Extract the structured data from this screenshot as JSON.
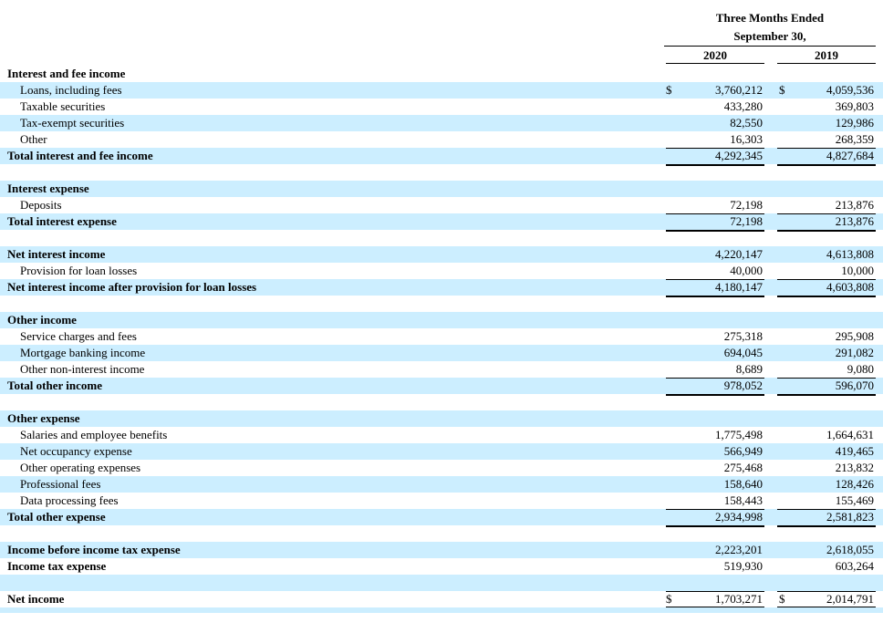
{
  "header": {
    "line1": "Three Months Ended",
    "line2": "September 30,",
    "year1": "2020",
    "year2": "2019"
  },
  "rows": [
    {
      "label": "Interest and fee income",
      "bold": true,
      "shade": false
    },
    {
      "label": "Loans, including fees",
      "indent": true,
      "shade": true,
      "dollar": true,
      "v1": "3,760,212",
      "v2": "4,059,536"
    },
    {
      "label": "Taxable securities",
      "indent": true,
      "shade": false,
      "v1": "433,280",
      "v2": "369,803"
    },
    {
      "label": "Tax-exempt securities",
      "indent": true,
      "shade": true,
      "v1": "82,550",
      "v2": "129,986"
    },
    {
      "label": "Other",
      "indent": true,
      "shade": false,
      "v1": "16,303",
      "v2": "268,359"
    },
    {
      "label": "Total interest and fee income",
      "bold": true,
      "shade": true,
      "v1": "4,292,345",
      "v2": "4,827,684",
      "rule_above": true,
      "total": true
    },
    {
      "blank": true,
      "shade": false
    },
    {
      "label": "Interest expense",
      "bold": true,
      "shade": true
    },
    {
      "label": "Deposits",
      "indent": true,
      "shade": false,
      "v1": "72,198",
      "v2": "213,876"
    },
    {
      "label": "Total interest expense",
      "bold": true,
      "shade": true,
      "v1": "72,198",
      "v2": "213,876",
      "rule_above": true,
      "total": true
    },
    {
      "blank": true,
      "shade": false
    },
    {
      "label": "Net interest income",
      "bold": true,
      "shade": true,
      "v1": "4,220,147",
      "v2": "4,613,808"
    },
    {
      "label": "Provision for loan losses",
      "indent": true,
      "shade": false,
      "v1": "40,000",
      "v2": "10,000"
    },
    {
      "label": "Net interest income after provision for loan losses",
      "bold": true,
      "shade": true,
      "v1": "4,180,147",
      "v2": "4,603,808",
      "rule_above": true,
      "total": true
    },
    {
      "blank": true,
      "shade": false
    },
    {
      "label": "Other income",
      "bold": true,
      "shade": true
    },
    {
      "label": "Service charges and fees",
      "indent": true,
      "shade": false,
      "v1": "275,318",
      "v2": "295,908"
    },
    {
      "label": "Mortgage banking income",
      "indent": true,
      "shade": true,
      "v1": "694,045",
      "v2": "291,082"
    },
    {
      "label": "Other non-interest income",
      "indent": true,
      "shade": false,
      "v1": "8,689",
      "v2": "9,080"
    },
    {
      "label": "Total other income",
      "bold": true,
      "shade": true,
      "v1": "978,052",
      "v2": "596,070",
      "rule_above": true,
      "total": true
    },
    {
      "blank": true,
      "shade": false
    },
    {
      "label": "Other expense",
      "bold": true,
      "shade": true
    },
    {
      "label": "Salaries and employee benefits",
      "indent": true,
      "shade": false,
      "v1": "1,775,498",
      "v2": "1,664,631"
    },
    {
      "label": "Net occupancy expense",
      "indent": true,
      "shade": true,
      "v1": "566,949",
      "v2": "419,465"
    },
    {
      "label": "Other operating expenses",
      "indent": true,
      "shade": false,
      "v1": "275,468",
      "v2": "213,832"
    },
    {
      "label": "Professional fees",
      "indent": true,
      "shade": true,
      "v1": "158,640",
      "v2": "128,426"
    },
    {
      "label": "Data processing fees",
      "indent": true,
      "shade": false,
      "v1": "158,443",
      "v2": "155,469"
    },
    {
      "label": "Total other expense",
      "bold": true,
      "shade": true,
      "v1": "2,934,998",
      "v2": "2,581,823",
      "rule_above": true,
      "total": true
    },
    {
      "blank": true,
      "shade": false
    },
    {
      "label": "Income before income tax expense",
      "bold": true,
      "shade": true,
      "v1": "2,223,201",
      "v2": "2,618,055"
    },
    {
      "label": "Income tax expense",
      "bold": true,
      "shade": false,
      "v1": "519,930",
      "v2": "603,264"
    },
    {
      "blank": true,
      "shade": true
    },
    {
      "label": "Net income",
      "bold": true,
      "shade": false,
      "dollar": true,
      "v1": "1,703,271",
      "v2": "2,014,791",
      "rule_above": true,
      "double": true
    },
    {
      "blank": true,
      "shade": true,
      "thin": true
    }
  ],
  "dollar_sign": "$"
}
